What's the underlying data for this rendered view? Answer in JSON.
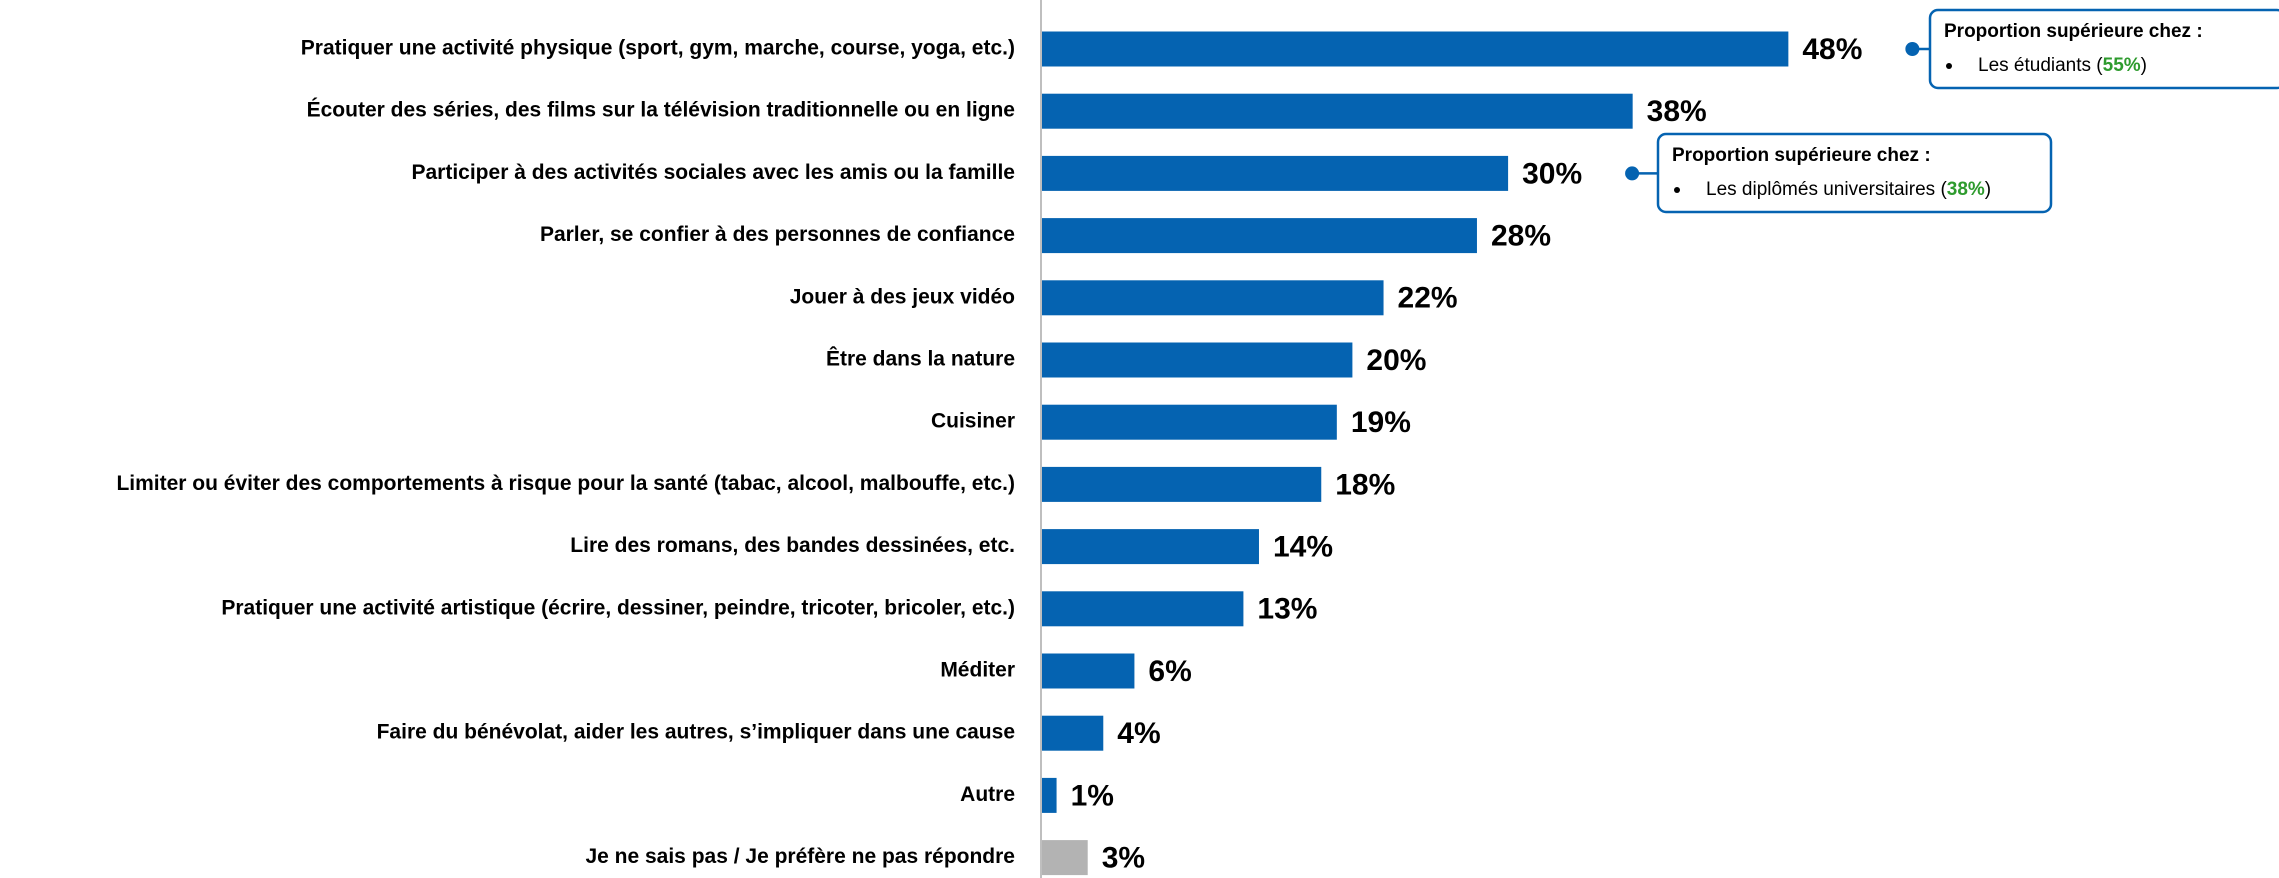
{
  "chart_data": {
    "type": "bar",
    "orientation": "horizontal",
    "categories": [
      "Pratiquer une activité physique (sport, gym, marche, course, yoga, etc.)",
      "Écouter des séries, des films sur la télévision traditionnelle ou en ligne",
      "Participer à des activités sociales avec les amis ou la famille",
      "Parler, se confier à des personnes de confiance",
      "Jouer à des jeux vidéo",
      "Être dans la nature",
      "Cuisiner",
      "Limiter ou éviter des comportements à risque pour la santé (tabac, alcool, malbouffe, etc.)",
      "Lire des romans, des bandes dessinées, etc.",
      "Pratiquer une activité artistique (écrire, dessiner, peindre, tricoter, bricoler, etc.)",
      "Méditer",
      "Faire du bénévolat, aider les autres, s’impliquer dans une cause",
      "Autre",
      "Je ne sais pas / Je préfère ne pas répondre"
    ],
    "values": [
      48,
      38,
      30,
      28,
      22,
      20,
      19,
      18,
      14,
      13,
      6,
      4,
      1,
      3
    ],
    "value_labels": [
      "48%",
      "38%",
      "30%",
      "28%",
      "22%",
      "20%",
      "19%",
      "18%",
      "14%",
      "13%",
      "6%",
      "4%",
      "1%",
      "3%"
    ],
    "colors": [
      "#0563b1",
      "#0563b1",
      "#0563b1",
      "#0563b1",
      "#0563b1",
      "#0563b1",
      "#0563b1",
      "#0563b1",
      "#0563b1",
      "#0563b1",
      "#0563b1",
      "#0563b1",
      "#0563b1",
      "#b3b3b3"
    ],
    "xlim": [
      0,
      100
    ],
    "annotations": [
      {
        "category": "Pratiquer une activité physique (sport, gym, marche, course, yoga, etc.)",
        "title": "Proportion supérieure chez :",
        "text": "Les étudiants (",
        "highlight": "55%",
        "suffix": ")"
      },
      {
        "category": "Participer à des activités sociales avec les amis ou la famille",
        "title": "Proportion supérieure chez :",
        "text": "Les diplômés universitaires (",
        "highlight": "38%",
        "suffix": ")"
      }
    ]
  }
}
